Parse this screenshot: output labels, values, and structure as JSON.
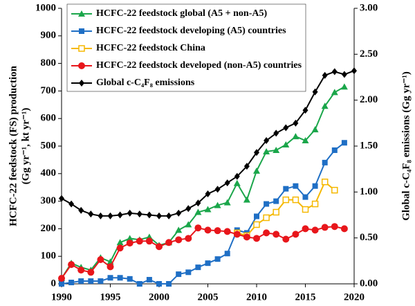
{
  "chart_data": {
    "type": "line",
    "x": [
      1990,
      1991,
      1992,
      1993,
      1994,
      1995,
      1996,
      1997,
      1998,
      1999,
      2000,
      2001,
      2002,
      2003,
      2004,
      2005,
      2006,
      2007,
      2008,
      2009,
      2010,
      2011,
      2012,
      2013,
      2014,
      2015,
      2016,
      2017,
      2018,
      2019,
      2020
    ],
    "xlim": [
      1990,
      2020
    ],
    "xticks": [
      1990,
      1995,
      2000,
      2005,
      2010,
      2015,
      2020
    ],
    "ylim": [
      0,
      1000
    ],
    "yticks": [
      0,
      100,
      200,
      300,
      400,
      500,
      600,
      700,
      800,
      900,
      1000
    ],
    "y2lim": [
      0,
      3
    ],
    "y2ticks": [
      {
        "value": 0,
        "label": "0.00"
      },
      {
        "value": 0.5,
        "label": "0.50"
      },
      {
        "value": 1,
        "label": "1.00"
      },
      {
        "value": 1.5,
        "label": "1.50"
      },
      {
        "value": 2,
        "label": "2.00"
      },
      {
        "value": 2.5,
        "label": "2.50"
      },
      {
        "value": 3,
        "label": "3.00"
      }
    ],
    "ylabel": [
      "HCFC-22 feedstock (FS) production",
      "(Gg yr⁻¹, kt yr⁻¹)"
    ],
    "y2label": "Global c-C₄F₈ emissions (Gg yr⁻¹)",
    "legend": "upper left",
    "series": [
      {
        "name": "HCFC-22 feedstock global (A5 + non-A5)",
        "color": "#1aa64a",
        "marker": "triangle",
        "values": [
          20,
          75,
          60,
          50,
          95,
          80,
          150,
          165,
          160,
          170,
          140,
          150,
          195,
          215,
          260,
          270,
          285,
          295,
          365,
          305,
          410,
          480,
          485,
          505,
          535,
          520,
          560,
          645,
          695,
          715,
          null
        ]
      },
      {
        "name": "HCFC-22 feedstock developing (A5) countries",
        "color": "#1f6fc5",
        "marker": "square",
        "values": [
          0,
          5,
          10,
          10,
          10,
          22,
          22,
          18,
          0,
          15,
          0,
          0,
          35,
          42,
          60,
          75,
          90,
          110,
          195,
          185,
          245,
          290,
          300,
          345,
          355,
          315,
          355,
          440,
          485,
          512,
          null
        ]
      },
      {
        "name": "HCFC-22 feedstock China",
        "color": "#f5b800",
        "marker": "square-open",
        "values": [
          null,
          null,
          null,
          null,
          null,
          null,
          null,
          null,
          null,
          null,
          null,
          null,
          null,
          null,
          null,
          null,
          null,
          null,
          185,
          175,
          215,
          240,
          260,
          305,
          305,
          270,
          290,
          370,
          340,
          null,
          null
        ]
      },
      {
        "name": "HCFC-22 feedstock developed (non-A5) countries",
        "color": "#e8161b",
        "marker": "circle",
        "values": [
          20,
          70,
          50,
          42,
          88,
          62,
          130,
          148,
          155,
          155,
          135,
          150,
          160,
          165,
          203,
          195,
          193,
          190,
          180,
          170,
          165,
          185,
          180,
          162,
          180,
          200,
          195,
          205,
          208,
          200,
          null
        ]
      },
      {
        "name": "Global c-C₄F₈ emissions",
        "color": "#000000",
        "marker": "diamond",
        "axis": "y2",
        "values": [
          0.93,
          0.87,
          0.8,
          0.76,
          0.74,
          0.74,
          0.75,
          0.77,
          0.76,
          0.75,
          0.74,
          0.74,
          0.77,
          0.82,
          0.88,
          0.98,
          1.03,
          1.1,
          1.17,
          1.28,
          1.43,
          1.56,
          1.64,
          1.7,
          1.75,
          1.89,
          2.09,
          2.27,
          2.31,
          2.28,
          2.32
        ]
      }
    ]
  }
}
